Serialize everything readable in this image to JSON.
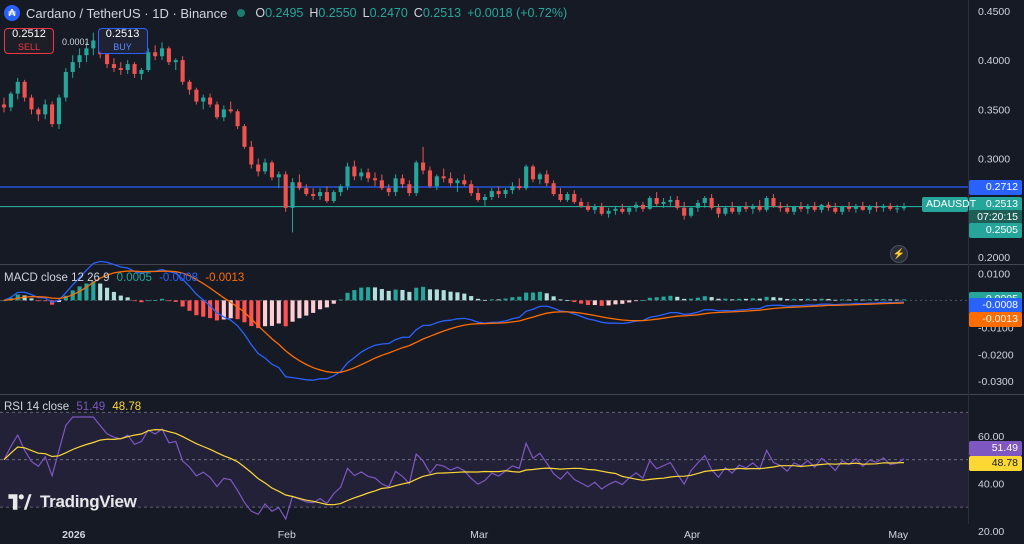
{
  "header": {
    "symbol_initial": "₳",
    "title": "Cardano / TetherUS · 1D · Binance",
    "open_label": "O",
    "open": "0.2495",
    "high_label": "H",
    "high": "0.2550",
    "low_label": "L",
    "low": "0.2470",
    "close_label": "C",
    "close": "0.2513",
    "change": "+0.0018 (+0.72%)"
  },
  "trade": {
    "sell_price": "0.2512",
    "sell_label": "SELL",
    "spread": "0.0001",
    "buy_price": "0.2513",
    "buy_label": "BUY"
  },
  "price_axis": {
    "ticks": [
      {
        "v": 0.45,
        "t": "0.4500"
      },
      {
        "v": 0.4,
        "t": "0.4000"
      },
      {
        "v": 0.35,
        "t": "0.3500"
      },
      {
        "v": 0.3,
        "t": "0.3000"
      },
      {
        "v": 0.2,
        "t": "0.2000"
      }
    ],
    "badges": [
      {
        "v": 0.2712,
        "t": "0.2712",
        "color": "#2962ff"
      },
      {
        "v": 0.2513,
        "t": "0.2513",
        "color": "#26a69a",
        "symbol": "ADAUSDT",
        "countdown": "07:20:15"
      },
      {
        "v": 0.2505,
        "t": "0.2505",
        "color": "#26a69a"
      }
    ]
  },
  "macd": {
    "label": "MACD close 12 26 9",
    "hist_val": "0.0005",
    "macd_val": "-0.0008",
    "signal_val": "-0.0013",
    "ticks": [
      {
        "v": 0.01,
        "t": "0.0100"
      },
      {
        "v": -0.01,
        "t": "-0.0100"
      },
      {
        "v": -0.02,
        "t": "-0.0200"
      },
      {
        "v": -0.03,
        "t": "-0.0300"
      }
    ],
    "colors": {
      "macd": "#2962ff",
      "signal": "#ff6d00",
      "hist_up": "#26a69a",
      "hist_down": "#ff5252"
    }
  },
  "rsi": {
    "label": "RSI 14 close",
    "rsi_val": "51.49",
    "ma_val": "48.78",
    "ticks": [
      {
        "v": 60,
        "t": "60.00"
      },
      {
        "v": 40,
        "t": "40.00"
      },
      {
        "v": 20,
        "t": "20.00"
      }
    ],
    "colors": {
      "rsi": "#7e57c2",
      "ma": "#fdd835"
    }
  },
  "time_axis": [
    {
      "i": 9,
      "t": "2026",
      "bold": true
    },
    {
      "i": 40,
      "t": "Feb"
    },
    {
      "i": 68,
      "t": "Mar"
    },
    {
      "i": 99,
      "t": "Apr"
    },
    {
      "i": 129,
      "t": "May"
    }
  ],
  "branding": {
    "text": "TradingView"
  },
  "chart_data": {
    "type": "candlestick",
    "title": "Cardano / TetherUS · 1D · Binance",
    "series": [
      {
        "name": "ADAUSDT",
        "values": [
          [
            0.355,
            0.362,
            0.347,
            0.352
          ],
          [
            0.352,
            0.368,
            0.348,
            0.366
          ],
          [
            0.366,
            0.382,
            0.36,
            0.378
          ],
          [
            0.378,
            0.38,
            0.358,
            0.362
          ],
          [
            0.362,
            0.365,
            0.345,
            0.35
          ],
          [
            0.35,
            0.352,
            0.338,
            0.345
          ],
          [
            0.345,
            0.36,
            0.34,
            0.355
          ],
          [
            0.355,
            0.358,
            0.332,
            0.335
          ],
          [
            0.335,
            0.365,
            0.33,
            0.362
          ],
          [
            0.362,
            0.392,
            0.358,
            0.388
          ],
          [
            0.388,
            0.405,
            0.382,
            0.398
          ],
          [
            0.398,
            0.412,
            0.392,
            0.405
          ],
          [
            0.405,
            0.418,
            0.398,
            0.412
          ],
          [
            0.412,
            0.428,
            0.405,
            0.42
          ],
          [
            0.42,
            0.425,
            0.402,
            0.406
          ],
          [
            0.406,
            0.41,
            0.392,
            0.396
          ],
          [
            0.396,
            0.402,
            0.388,
            0.392
          ],
          [
            0.392,
            0.398,
            0.385,
            0.39
          ],
          [
            0.39,
            0.4,
            0.386,
            0.396
          ],
          [
            0.396,
            0.398,
            0.382,
            0.386
          ],
          [
            0.386,
            0.392,
            0.38,
            0.39
          ],
          [
            0.39,
            0.412,
            0.388,
            0.408
          ],
          [
            0.408,
            0.415,
            0.4,
            0.404
          ],
          [
            0.404,
            0.418,
            0.4,
            0.412
          ],
          [
            0.412,
            0.414,
            0.395,
            0.398
          ],
          [
            0.398,
            0.402,
            0.39,
            0.4
          ],
          [
            0.4,
            0.404,
            0.375,
            0.378
          ],
          [
            0.378,
            0.38,
            0.365,
            0.37
          ],
          [
            0.37,
            0.372,
            0.355,
            0.358
          ],
          [
            0.358,
            0.365,
            0.35,
            0.362
          ],
          [
            0.362,
            0.366,
            0.352,
            0.355
          ],
          [
            0.355,
            0.358,
            0.34,
            0.342
          ],
          [
            0.342,
            0.354,
            0.338,
            0.35
          ],
          [
            0.35,
            0.358,
            0.346,
            0.348
          ],
          [
            0.348,
            0.35,
            0.33,
            0.333
          ],
          [
            0.333,
            0.335,
            0.31,
            0.312
          ],
          [
            0.312,
            0.318,
            0.29,
            0.294
          ],
          [
            0.294,
            0.3,
            0.282,
            0.287
          ],
          [
            0.287,
            0.3,
            0.284,
            0.296
          ],
          [
            0.296,
            0.298,
            0.278,
            0.281
          ],
          [
            0.281,
            0.287,
            0.27,
            0.284
          ],
          [
            0.284,
            0.287,
            0.246,
            0.25
          ],
          [
            0.25,
            0.28,
            0.225,
            0.276
          ],
          [
            0.276,
            0.284,
            0.268,
            0.27
          ],
          [
            0.27,
            0.274,
            0.262,
            0.264
          ],
          [
            0.264,
            0.27,
            0.258,
            0.262
          ],
          [
            0.262,
            0.27,
            0.258,
            0.266
          ],
          [
            0.266,
            0.272,
            0.255,
            0.257
          ],
          [
            0.257,
            0.268,
            0.255,
            0.266
          ],
          [
            0.266,
            0.274,
            0.262,
            0.272
          ],
          [
            0.272,
            0.296,
            0.268,
            0.292
          ],
          [
            0.292,
            0.298,
            0.278,
            0.282
          ],
          [
            0.282,
            0.29,
            0.278,
            0.286
          ],
          [
            0.286,
            0.29,
            0.276,
            0.28
          ],
          [
            0.28,
            0.286,
            0.272,
            0.278
          ],
          [
            0.278,
            0.284,
            0.268,
            0.27
          ],
          [
            0.27,
            0.274,
            0.262,
            0.266
          ],
          [
            0.266,
            0.284,
            0.262,
            0.28
          ],
          [
            0.28,
            0.284,
            0.27,
            0.274
          ],
          [
            0.274,
            0.278,
            0.262,
            0.265
          ],
          [
            0.265,
            0.298,
            0.262,
            0.296
          ],
          [
            0.296,
            0.312,
            0.284,
            0.288
          ],
          [
            0.288,
            0.292,
            0.27,
            0.272
          ],
          [
            0.272,
            0.284,
            0.268,
            0.282
          ],
          [
            0.282,
            0.29,
            0.276,
            0.28
          ],
          [
            0.28,
            0.286,
            0.272,
            0.275
          ],
          [
            0.275,
            0.28,
            0.266,
            0.278
          ],
          [
            0.278,
            0.284,
            0.272,
            0.274
          ],
          [
            0.274,
            0.278,
            0.262,
            0.265
          ],
          [
            0.265,
            0.27,
            0.256,
            0.258
          ],
          [
            0.258,
            0.264,
            0.252,
            0.261
          ],
          [
            0.261,
            0.27,
            0.258,
            0.267
          ],
          [
            0.267,
            0.272,
            0.26,
            0.264
          ],
          [
            0.264,
            0.27,
            0.26,
            0.268
          ],
          [
            0.268,
            0.276,
            0.264,
            0.272
          ],
          [
            0.272,
            0.28,
            0.268,
            0.27
          ],
          [
            0.27,
            0.294,
            0.268,
            0.292
          ],
          [
            0.292,
            0.294,
            0.276,
            0.279
          ],
          [
            0.279,
            0.286,
            0.274,
            0.284
          ],
          [
            0.284,
            0.288,
            0.272,
            0.275
          ],
          [
            0.275,
            0.278,
            0.262,
            0.264
          ],
          [
            0.264,
            0.27,
            0.256,
            0.258
          ],
          [
            0.258,
            0.266,
            0.256,
            0.264
          ],
          [
            0.264,
            0.268,
            0.254,
            0.256
          ],
          [
            0.256,
            0.26,
            0.25,
            0.252
          ],
          [
            0.252,
            0.256,
            0.246,
            0.248
          ],
          [
            0.248,
            0.254,
            0.244,
            0.251
          ],
          [
            0.251,
            0.255,
            0.242,
            0.244
          ],
          [
            0.244,
            0.25,
            0.24,
            0.247
          ],
          [
            0.247,
            0.252,
            0.243,
            0.249
          ],
          [
            0.249,
            0.254,
            0.244,
            0.246
          ],
          [
            0.246,
            0.252,
            0.243,
            0.25
          ],
          [
            0.25,
            0.256,
            0.246,
            0.253
          ],
          [
            0.253,
            0.256,
            0.246,
            0.249
          ],
          [
            0.249,
            0.262,
            0.248,
            0.26
          ],
          [
            0.26,
            0.266,
            0.252,
            0.254
          ],
          [
            0.254,
            0.26,
            0.25,
            0.256
          ],
          [
            0.256,
            0.262,
            0.252,
            0.258
          ],
          [
            0.258,
            0.262,
            0.248,
            0.25
          ],
          [
            0.25,
            0.256,
            0.238,
            0.242
          ],
          [
            0.242,
            0.252,
            0.24,
            0.25
          ],
          [
            0.25,
            0.258,
            0.246,
            0.255
          ],
          [
            0.255,
            0.262,
            0.25,
            0.26
          ],
          [
            0.26,
            0.264,
            0.248,
            0.25
          ],
          [
            0.25,
            0.254,
            0.24,
            0.244
          ],
          [
            0.244,
            0.252,
            0.242,
            0.25
          ],
          [
            0.25,
            0.256,
            0.244,
            0.246
          ],
          [
            0.246,
            0.252,
            0.243,
            0.251
          ],
          [
            0.251,
            0.256,
            0.246,
            0.249
          ],
          [
            0.249,
            0.254,
            0.244,
            0.252
          ],
          [
            0.252,
            0.258,
            0.246,
            0.248
          ],
          [
            0.248,
            0.262,
            0.246,
            0.26
          ],
          [
            0.26,
            0.264,
            0.25,
            0.252
          ],
          [
            0.252,
            0.256,
            0.246,
            0.25
          ],
          [
            0.25,
            0.254,
            0.244,
            0.246
          ],
          [
            0.246,
            0.252,
            0.243,
            0.251
          ],
          [
            0.251,
            0.256,
            0.246,
            0.249
          ],
          [
            0.249,
            0.254,
            0.244,
            0.252
          ],
          [
            0.252,
            0.256,
            0.246,
            0.248
          ],
          [
            0.248,
            0.254,
            0.245,
            0.253
          ],
          [
            0.253,
            0.256,
            0.247,
            0.25
          ],
          [
            0.25,
            0.255,
            0.244,
            0.246
          ],
          [
            0.246,
            0.252,
            0.243,
            0.251
          ],
          [
            0.251,
            0.256,
            0.246,
            0.249
          ],
          [
            0.249,
            0.254,
            0.245,
            0.252
          ],
          [
            0.252,
            0.256,
            0.247,
            0.248
          ],
          [
            0.248,
            0.253,
            0.244,
            0.251
          ],
          [
            0.251,
            0.256,
            0.246,
            0.25
          ],
          [
            0.25,
            0.254,
            0.246,
            0.252
          ],
          [
            0.252,
            0.255,
            0.247,
            0.249
          ],
          [
            0.249,
            0.253,
            0.245,
            0.2495
          ],
          [
            0.2495,
            0.255,
            0.247,
            0.2513
          ]
        ]
      }
    ],
    "hlines": [
      0.2712,
      0.2513
    ],
    "ylim": [
      0.195,
      0.455
    ]
  }
}
